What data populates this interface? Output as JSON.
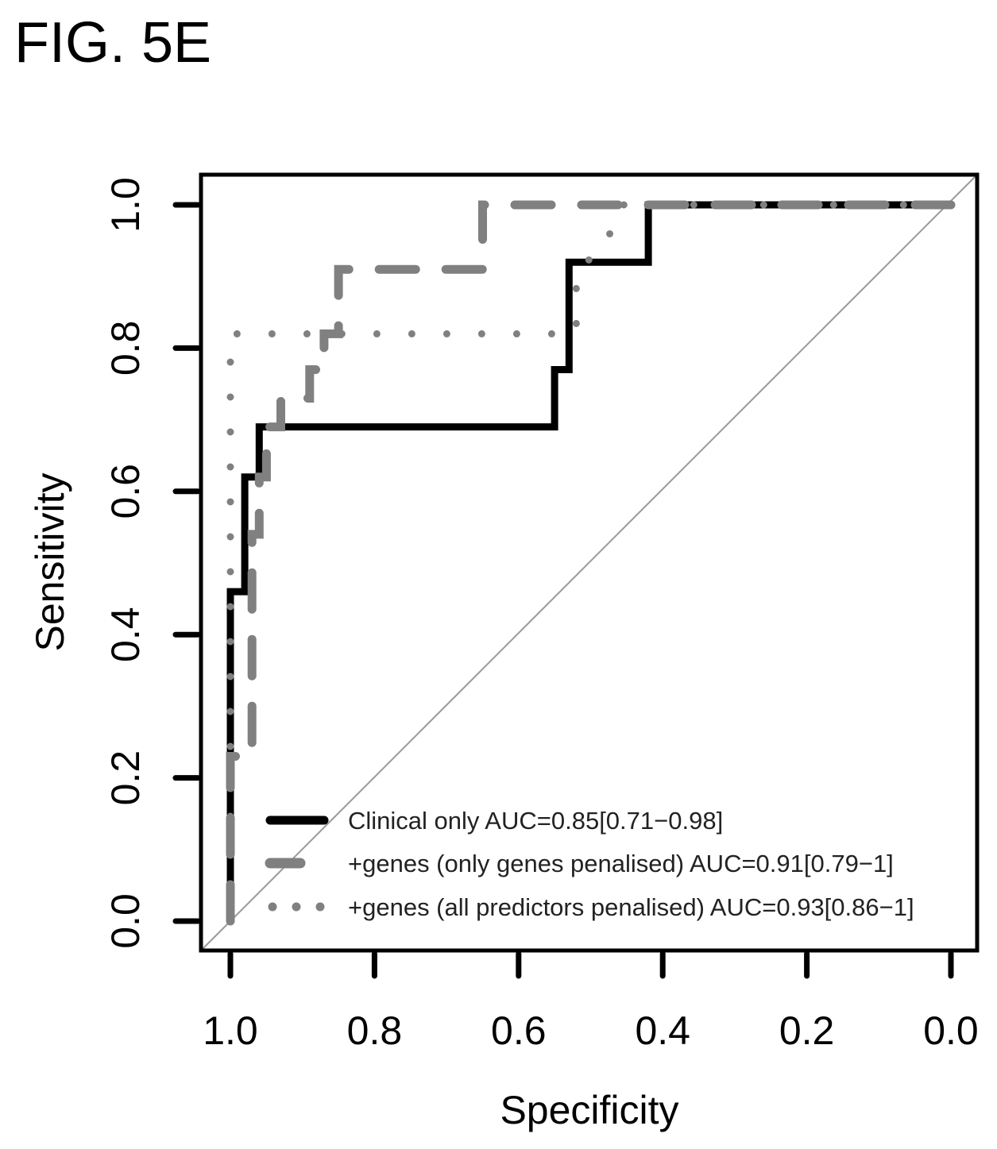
{
  "figure_label": "FIG. 5E",
  "chart_data": {
    "type": "line",
    "title": "",
    "xlabel": "Specificity",
    "ylabel": "Sensitivity",
    "xlim": [
      1.0,
      0.0
    ],
    "ylim": [
      0.0,
      1.0
    ],
    "x_reversed": true,
    "x_ticks": [
      "1.0",
      "0.8",
      "0.6",
      "0.4",
      "0.2",
      "0.0"
    ],
    "x_tick_values": [
      1.0,
      0.8,
      0.6,
      0.4,
      0.2,
      0.0
    ],
    "y_ticks": [
      "0.0",
      "0.2",
      "0.4",
      "0.6",
      "0.8",
      "1.0"
    ],
    "y_tick_values": [
      0.0,
      0.2,
      0.4,
      0.6,
      0.8,
      1.0
    ],
    "grid": false,
    "legend_position": "bottom-right",
    "reference_line": {
      "from": [
        1.0,
        0.0
      ],
      "to": [
        0.0,
        1.0
      ],
      "color": "#999999"
    },
    "series": [
      {
        "name": "Clinical only AUC=0.85[0.71−0.98]",
        "style": "solid",
        "color": "#000000",
        "points": [
          [
            1.0,
            0.0
          ],
          [
            1.0,
            0.46
          ],
          [
            0.98,
            0.46
          ],
          [
            0.98,
            0.62
          ],
          [
            0.96,
            0.62
          ],
          [
            0.96,
            0.69
          ],
          [
            0.55,
            0.69
          ],
          [
            0.55,
            0.77
          ],
          [
            0.53,
            0.77
          ],
          [
            0.53,
            0.92
          ],
          [
            0.42,
            0.92
          ],
          [
            0.42,
            1.0
          ],
          [
            0.0,
            1.0
          ]
        ]
      },
      {
        "name": "+genes (only genes penalised) AUC=0.91[0.79−1]",
        "style": "dashed",
        "color": "#808080",
        "points": [
          [
            1.0,
            0.0
          ],
          [
            1.0,
            0.23
          ],
          [
            0.97,
            0.23
          ],
          [
            0.97,
            0.46
          ],
          [
            0.97,
            0.54
          ],
          [
            0.96,
            0.54
          ],
          [
            0.96,
            0.62
          ],
          [
            0.95,
            0.62
          ],
          [
            0.95,
            0.69
          ],
          [
            0.93,
            0.69
          ],
          [
            0.93,
            0.73
          ],
          [
            0.89,
            0.73
          ],
          [
            0.89,
            0.77
          ],
          [
            0.87,
            0.77
          ],
          [
            0.87,
            0.82
          ],
          [
            0.85,
            0.82
          ],
          [
            0.85,
            0.91
          ],
          [
            0.65,
            0.91
          ],
          [
            0.65,
            1.0
          ],
          [
            0.0,
            1.0
          ]
        ]
      },
      {
        "name": "+genes (all predictors penalised) AUC=0.93[0.86−1]",
        "style": "dotted",
        "color": "#808080",
        "points": [
          [
            1.0,
            0.0
          ],
          [
            1.0,
            0.82
          ],
          [
            0.98,
            0.82
          ],
          [
            0.52,
            0.82
          ],
          [
            0.52,
            0.91
          ],
          [
            0.48,
            0.94
          ],
          [
            0.46,
            1.0
          ],
          [
            0.0,
            1.0
          ]
        ]
      }
    ]
  }
}
